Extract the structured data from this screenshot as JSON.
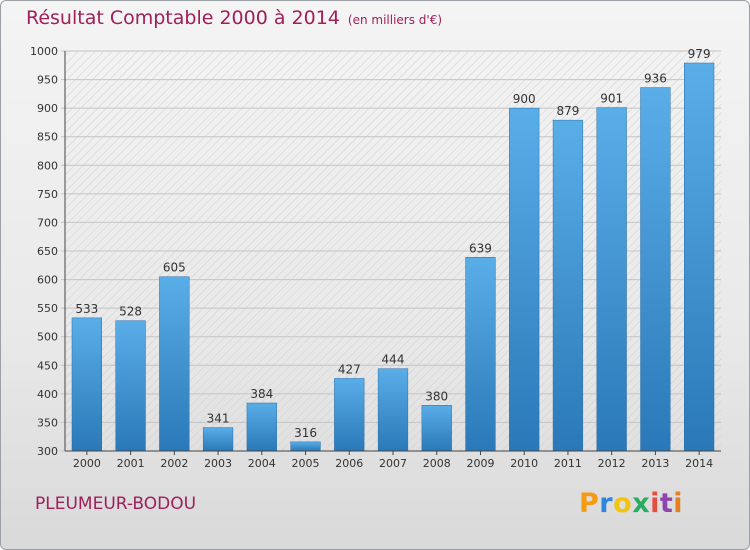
{
  "title": "Résultat Comptable 2000 à 2014",
  "subtitle": "(en milliers d'€)",
  "commune": "PLEUMEUR-BODOU",
  "logo": {
    "letters": [
      "P",
      "r",
      "o",
      "x",
      "i",
      "t",
      "i"
    ],
    "colors": [
      "#f39c12",
      "#2e86de",
      "#f1c40f",
      "#27ae60",
      "#e74c3c",
      "#8e44ad",
      "#e67e22"
    ]
  },
  "chart_data": {
    "type": "bar",
    "title": "Résultat Comptable 2000 à 2014",
    "categories": [
      "2000",
      "2001",
      "2002",
      "2003",
      "2004",
      "2005",
      "2006",
      "2007",
      "2008",
      "2009",
      "2010",
      "2011",
      "2012",
      "2013",
      "2014"
    ],
    "values": [
      533,
      528,
      605,
      341,
      384,
      316,
      427,
      444,
      380,
      639,
      900,
      879,
      901,
      936,
      979
    ],
    "xlabel": "",
    "ylabel": "",
    "ylim": [
      300,
      1000
    ],
    "yticks": [
      300,
      350,
      400,
      450,
      500,
      550,
      600,
      650,
      700,
      750,
      800,
      850,
      900,
      950,
      1000
    ],
    "grid": true,
    "bar_color": "#3a8fd0"
  }
}
